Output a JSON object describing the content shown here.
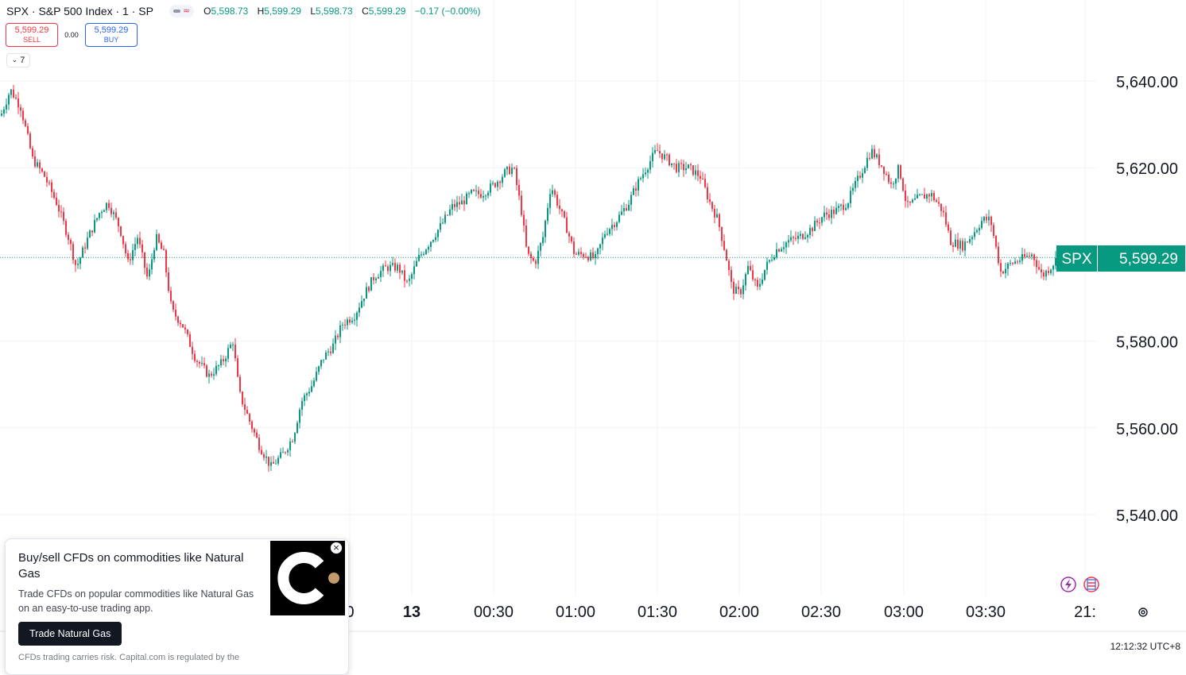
{
  "legend": {
    "symbol": "SPX · S&P 500 Index · 1 · SP",
    "ohlc": {
      "o_label": "O",
      "o": "5,598.73",
      "h_label": "H",
      "h": "5,599.29",
      "l_label": "L",
      "l": "5,598.73",
      "c_label": "C",
      "c": "5,599.29",
      "change": "−0.17 (−0.00%)"
    }
  },
  "trade": {
    "sell_price": "5,599.29",
    "sell_label": "SELL",
    "spread": "0.00",
    "buy_price": "5,599.29",
    "buy_label": "BUY"
  },
  "indicators_toggle": {
    "count": "7"
  },
  "chart_data": {
    "type": "candlestick",
    "symbol": "SPX",
    "last_price": "5,599.29",
    "ylim": [
      5520,
      5650
    ],
    "y_ticks": [
      5540,
      5560,
      5580,
      5600,
      5620,
      5640
    ],
    "y_tick_labels": [
      "5,540.00",
      "5,560.00",
      "5,580.00",
      "5,600.00",
      "5,620.00",
      "5,640.00"
    ],
    "x_tick_labels": [
      "0",
      "13",
      "00:30",
      "01:00",
      "01:30",
      "02:00",
      "02:30",
      "03:00",
      "03:30",
      "21:"
    ],
    "close_path_keypoints": [
      [
        0,
        5632
      ],
      [
        12,
        5638
      ],
      [
        25,
        5634
      ],
      [
        40,
        5622
      ],
      [
        55,
        5618
      ],
      [
        70,
        5612
      ],
      [
        85,
        5604
      ],
      [
        95,
        5597
      ],
      [
        110,
        5604
      ],
      [
        125,
        5610
      ],
      [
        135,
        5612
      ],
      [
        150,
        5606
      ],
      [
        160,
        5598
      ],
      [
        172,
        5604
      ],
      [
        185,
        5594
      ],
      [
        195,
        5604
      ],
      [
        205,
        5600
      ],
      [
        215,
        5587
      ],
      [
        228,
        5584
      ],
      [
        245,
        5576
      ],
      [
        262,
        5572
      ],
      [
        278,
        5575
      ],
      [
        292,
        5580
      ],
      [
        300,
        5568
      ],
      [
        312,
        5562
      ],
      [
        325,
        5556
      ],
      [
        340,
        5551
      ],
      [
        355,
        5554
      ],
      [
        368,
        5558
      ],
      [
        378,
        5566
      ],
      [
        392,
        5570
      ],
      [
        405,
        5576
      ],
      [
        418,
        5579
      ],
      [
        430,
        5584
      ],
      [
        445,
        5586
      ],
      [
        458,
        5591
      ],
      [
        470,
        5595
      ],
      [
        485,
        5597
      ],
      [
        500,
        5597
      ],
      [
        512,
        5593
      ],
      [
        525,
        5599
      ],
      [
        540,
        5603
      ],
      [
        555,
        5607
      ],
      [
        568,
        5611
      ],
      [
        580,
        5612
      ],
      [
        592,
        5614
      ],
      [
        605,
        5614
      ],
      [
        620,
        5616
      ],
      [
        635,
        5619
      ],
      [
        645,
        5620
      ],
      [
        655,
        5610
      ],
      [
        662,
        5600
      ],
      [
        672,
        5598
      ],
      [
        682,
        5604
      ],
      [
        692,
        5616
      ],
      [
        702,
        5611
      ],
      [
        712,
        5606
      ],
      [
        722,
        5600
      ],
      [
        735,
        5600
      ],
      [
        748,
        5599
      ],
      [
        760,
        5605
      ],
      [
        775,
        5608
      ],
      [
        790,
        5612
      ],
      [
        800,
        5616
      ],
      [
        812,
        5620
      ],
      [
        825,
        5624
      ],
      [
        838,
        5622
      ],
      [
        850,
        5620
      ],
      [
        865,
        5620
      ],
      [
        880,
        5618
      ],
      [
        892,
        5612
      ],
      [
        902,
        5608
      ],
      [
        912,
        5600
      ],
      [
        920,
        5592
      ],
      [
        930,
        5591
      ],
      [
        940,
        5597
      ],
      [
        952,
        5592
      ],
      [
        962,
        5597
      ],
      [
        975,
        5601
      ],
      [
        990,
        5603
      ],
      [
        1005,
        5604
      ],
      [
        1020,
        5606
      ],
      [
        1035,
        5609
      ],
      [
        1050,
        5610
      ],
      [
        1065,
        5612
      ],
      [
        1080,
        5618
      ],
      [
        1095,
        5624
      ],
      [
        1110,
        5620
      ],
      [
        1120,
        5616
      ],
      [
        1130,
        5620
      ],
      [
        1140,
        5611
      ],
      [
        1155,
        5613
      ],
      [
        1170,
        5614
      ],
      [
        1185,
        5610
      ],
      [
        1195,
        5603
      ],
      [
        1210,
        5602
      ],
      [
        1220,
        5604
      ],
      [
        1235,
        5608
      ],
      [
        1245,
        5608
      ],
      [
        1258,
        5596
      ],
      [
        1272,
        5598
      ],
      [
        1285,
        5599
      ],
      [
        1298,
        5600
      ],
      [
        1310,
        5595
      ],
      [
        1320,
        5597
      ],
      [
        1328,
        5599
      ]
    ]
  },
  "price_tag": {
    "symbol": "SPX",
    "price": "5,599.29"
  },
  "timezone": "12:12:32 UTC+8",
  "ad": {
    "title": "Buy/sell CFDs on commodities like Natural Gas",
    "desc": "Trade CFDs on popular commodities like Natural Gas on an easy-to-use trading app.",
    "cta": "Trade Natural Gas",
    "disclaimer": "CFDs trading carries risk. Capital.com is regulated by the"
  },
  "colors": {
    "up": "#089981",
    "down": "#f23645",
    "grid": "#f0f3fa",
    "axis_text": "#131722",
    "tag_bg": "#089981"
  }
}
